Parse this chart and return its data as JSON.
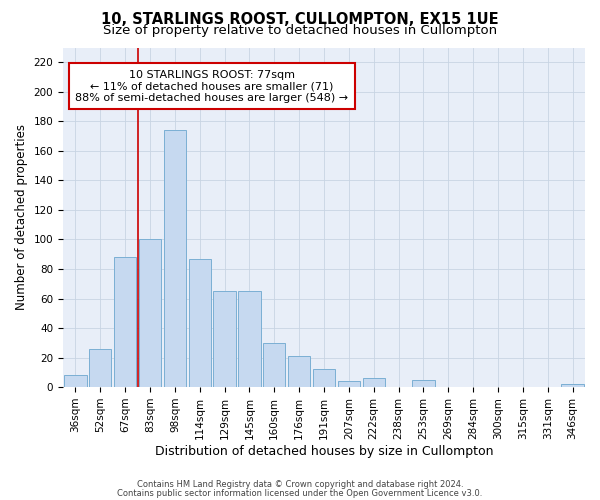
{
  "title": "10, STARLINGS ROOST, CULLOMPTON, EX15 1UE",
  "subtitle": "Size of property relative to detached houses in Cullompton",
  "xlabel": "Distribution of detached houses by size in Cullompton",
  "ylabel": "Number of detached properties",
  "categories": [
    "36sqm",
    "52sqm",
    "67sqm",
    "83sqm",
    "98sqm",
    "114sqm",
    "129sqm",
    "145sqm",
    "160sqm",
    "176sqm",
    "191sqm",
    "207sqm",
    "222sqm",
    "238sqm",
    "253sqm",
    "269sqm",
    "284sqm",
    "300sqm",
    "315sqm",
    "331sqm",
    "346sqm"
  ],
  "values": [
    8,
    26,
    88,
    100,
    174,
    87,
    65,
    65,
    30,
    21,
    12,
    4,
    6,
    0,
    5,
    0,
    0,
    0,
    0,
    0,
    2
  ],
  "bar_color": "#c6d9f0",
  "bar_edge_color": "#7bafd4",
  "vline_x_index": 3,
  "annotation_text": "10 STARLINGS ROOST: 77sqm\n← 11% of detached houses are smaller (71)\n88% of semi-detached houses are larger (548) →",
  "annotation_box_color": "#ffffff",
  "annotation_box_edge_color": "#cc0000",
  "vline_color": "#cc0000",
  "ylim": [
    0,
    230
  ],
  "yticks": [
    0,
    20,
    40,
    60,
    80,
    100,
    120,
    140,
    160,
    180,
    200,
    220
  ],
  "grid_color": "#c8d4e3",
  "background_color": "#e8eef8",
  "footer1": "Contains HM Land Registry data © Crown copyright and database right 2024.",
  "footer2": "Contains public sector information licensed under the Open Government Licence v3.0.",
  "title_fontsize": 10.5,
  "subtitle_fontsize": 9.5,
  "xlabel_fontsize": 9,
  "ylabel_fontsize": 8.5,
  "tick_fontsize": 7.5,
  "annotation_fontsize": 8,
  "footer_fontsize": 6
}
